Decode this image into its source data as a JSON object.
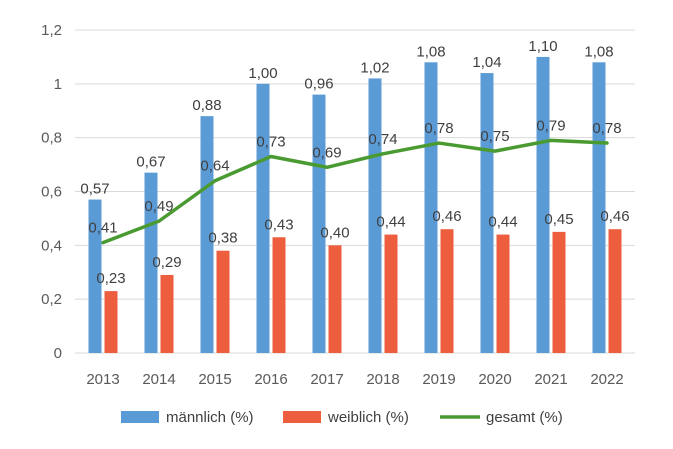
{
  "chart_data": {
    "type": "bar",
    "categories": [
      "2013",
      "2014",
      "2015",
      "2016",
      "2017",
      "2018",
      "2019",
      "2020",
      "2021",
      "2022"
    ],
    "series": [
      {
        "name": "männlich (%)",
        "type": "bar",
        "color": "#5B9BD5",
        "values": [
          0.57,
          0.67,
          0.88,
          1.0,
          0.96,
          1.02,
          1.08,
          1.04,
          1.1,
          1.08
        ],
        "labels": [
          "0,57",
          "0,67",
          "0,88",
          "1,00",
          "0,96",
          "1,02",
          "1,08",
          "1,04",
          "1,10",
          "1,08"
        ]
      },
      {
        "name": "weiblich (%)",
        "type": "bar",
        "color": "#ED5E3F",
        "values": [
          0.23,
          0.29,
          0.38,
          0.43,
          0.4,
          0.44,
          0.46,
          0.44,
          0.45,
          0.46
        ],
        "labels": [
          "0,23",
          "0,29",
          "0,38",
          "0,43",
          "0,40",
          "0,44",
          "0,46",
          "0,44",
          "0,45",
          "0,46"
        ]
      },
      {
        "name": "gesamt (%)",
        "type": "line",
        "color": "#4A9A32",
        "values": [
          0.41,
          0.49,
          0.64,
          0.73,
          0.69,
          0.74,
          0.78,
          0.75,
          0.79,
          0.78
        ],
        "labels": [
          "0,41",
          "0,49",
          "0,64",
          "0,73",
          "0,69",
          "0,74",
          "0,78",
          "0,75",
          "0,79",
          "0,78"
        ]
      }
    ],
    "ylim": [
      0,
      1.2
    ],
    "yticks": [
      0,
      0.2,
      0.4,
      0.6,
      0.8,
      1.0,
      1.2
    ],
    "ytick_labels": [
      "0",
      "0,2",
      "0,4",
      "0,6",
      "0,8",
      "1",
      "1,2"
    ],
    "grid": true,
    "gridline_color": "#D9D9D9",
    "legend_position": "bottom"
  }
}
